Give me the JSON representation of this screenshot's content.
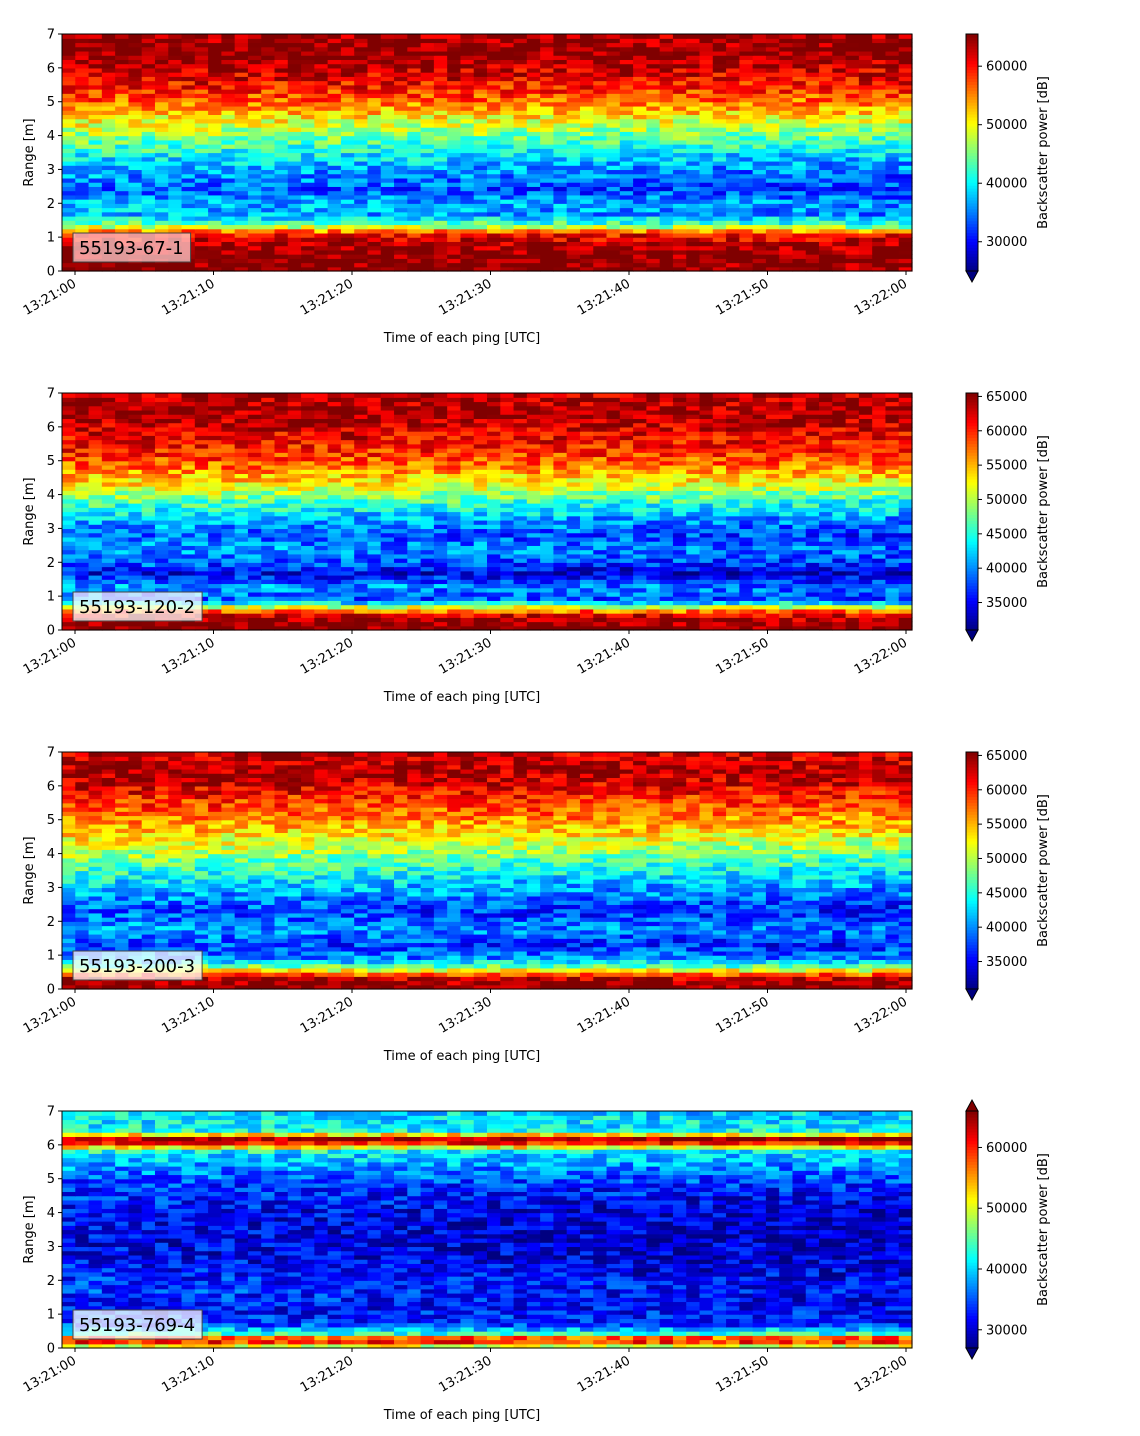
{
  "chart_data": [
    {
      "type": "heatmap",
      "label_box": "55193-67-1",
      "xlabel": "Time of each ping [UTC]",
      "ylabel": "Range [m]",
      "xticks": [
        "13:21:00",
        "13:21:10",
        "13:21:20",
        "13:21:30",
        "13:21:40",
        "13:21:50",
        "13:22:00"
      ],
      "x_range": [
        "13:21:00",
        "13:22:00"
      ],
      "ylim": [
        0,
        7
      ],
      "yticks": [
        "0",
        "1",
        "2",
        "3",
        "4",
        "5",
        "6",
        "7"
      ],
      "colorbar": {
        "label": "Backscatter power [dB]",
        "range": [
          25000,
          65500
        ],
        "ticks": [
          "30000",
          "40000",
          "50000",
          "60000"
        ],
        "extend": "min"
      },
      "profile": [
        {
          "range": 0.1,
          "value": 65500
        },
        {
          "range": 0.4,
          "value": 65500
        },
        {
          "range": 0.8,
          "value": 64000
        },
        {
          "range": 1.1,
          "value": 60000
        },
        {
          "range": 1.35,
          "value": 45000
        },
        {
          "range": 1.7,
          "value": 36000
        },
        {
          "range": 2.0,
          "value": 37000
        },
        {
          "range": 2.4,
          "value": 33000
        },
        {
          "range": 3.0,
          "value": 36000
        },
        {
          "range": 3.5,
          "value": 40000
        },
        {
          "range": 4.0,
          "value": 45000
        },
        {
          "range": 4.5,
          "value": 50000
        },
        {
          "range": 5.0,
          "value": 56000
        },
        {
          "range": 5.5,
          "value": 60000
        },
        {
          "range": 6.0,
          "value": 63000
        },
        {
          "range": 6.5,
          "value": 65500
        },
        {
          "range": 7.0,
          "value": 64000
        }
      ]
    },
    {
      "type": "heatmap",
      "label_box": "55193-120-2",
      "xlabel": "Time of each ping [UTC]",
      "ylabel": "Range [m]",
      "xticks": [
        "13:21:00",
        "13:21:10",
        "13:21:20",
        "13:21:30",
        "13:21:40",
        "13:21:50",
        "13:22:00"
      ],
      "x_range": [
        "13:21:00",
        "13:22:00"
      ],
      "ylim": [
        0,
        7
      ],
      "yticks": [
        "0",
        "1",
        "2",
        "3",
        "4",
        "5",
        "6",
        "7"
      ],
      "colorbar": {
        "label": "Backscatter power [dB]",
        "range": [
          31000,
          65500
        ],
        "ticks": [
          "35000",
          "40000",
          "45000",
          "50000",
          "55000",
          "60000",
          "65000"
        ],
        "extend": "min"
      },
      "profile": [
        {
          "range": 0.1,
          "value": 65500
        },
        {
          "range": 0.4,
          "value": 64000
        },
        {
          "range": 0.6,
          "value": 56000
        },
        {
          "range": 0.9,
          "value": 38000
        },
        {
          "range": 1.3,
          "value": 40000
        },
        {
          "range": 1.7,
          "value": 34000
        },
        {
          "range": 2.0,
          "value": 38000
        },
        {
          "range": 2.4,
          "value": 40000
        },
        {
          "range": 2.8,
          "value": 38000
        },
        {
          "range": 3.3,
          "value": 41000
        },
        {
          "range": 3.8,
          "value": 46000
        },
        {
          "range": 4.3,
          "value": 52000
        },
        {
          "range": 4.8,
          "value": 57000
        },
        {
          "range": 5.3,
          "value": 60000
        },
        {
          "range": 5.8,
          "value": 62000
        },
        {
          "range": 6.3,
          "value": 64500
        },
        {
          "range": 7.0,
          "value": 63500
        }
      ]
    },
    {
      "type": "heatmap",
      "label_box": "55193-200-3",
      "xlabel": "Time of each ping [UTC]",
      "ylabel": "Range [m]",
      "xticks": [
        "13:21:00",
        "13:21:10",
        "13:21:20",
        "13:21:30",
        "13:21:40",
        "13:21:50",
        "13:22:00"
      ],
      "x_range": [
        "13:21:00",
        "13:22:00"
      ],
      "ylim": [
        0,
        7
      ],
      "yticks": [
        "0",
        "1",
        "2",
        "3",
        "4",
        "5",
        "6",
        "7"
      ],
      "colorbar": {
        "label": "Backscatter power [dB]",
        "range": [
          31000,
          65500
        ],
        "ticks": [
          "35000",
          "40000",
          "45000",
          "50000",
          "55000",
          "60000",
          "65000"
        ],
        "extend": "min"
      },
      "profile": [
        {
          "range": 0.1,
          "value": 65500
        },
        {
          "range": 0.35,
          "value": 63000
        },
        {
          "range": 0.6,
          "value": 50000
        },
        {
          "range": 0.9,
          "value": 40000
        },
        {
          "range": 1.3,
          "value": 37000
        },
        {
          "range": 1.8,
          "value": 40000
        },
        {
          "range": 2.3,
          "value": 37000
        },
        {
          "range": 2.8,
          "value": 40000
        },
        {
          "range": 3.3,
          "value": 43000
        },
        {
          "range": 3.8,
          "value": 47000
        },
        {
          "range": 4.3,
          "value": 51000
        },
        {
          "range": 4.8,
          "value": 55000
        },
        {
          "range": 5.3,
          "value": 58000
        },
        {
          "range": 5.8,
          "value": 61000
        },
        {
          "range": 6.3,
          "value": 64000
        },
        {
          "range": 7.0,
          "value": 63000
        }
      ]
    },
    {
      "type": "heatmap",
      "label_box": "55193-769-4",
      "xlabel": "Time of each ping [UTC]",
      "ylabel": "Range [m]",
      "xticks": [
        "13:21:00",
        "13:21:10",
        "13:21:20",
        "13:21:30",
        "13:21:40",
        "13:21:50",
        "13:22:00"
      ],
      "x_range": [
        "13:21:00",
        "13:22:00"
      ],
      "ylim": [
        0,
        7
      ],
      "yticks": [
        "0",
        "1",
        "2",
        "3",
        "4",
        "5",
        "6",
        "7"
      ],
      "colorbar": {
        "label": "Backscatter power [dB]",
        "range": [
          27000,
          66000
        ],
        "ticks": [
          "30000",
          "40000",
          "50000",
          "60000"
        ],
        "extend": "both"
      },
      "profile": [
        {
          "range": 0.1,
          "value": 50000
        },
        {
          "range": 0.25,
          "value": 66000
        },
        {
          "range": 0.4,
          "value": 45000
        },
        {
          "range": 0.7,
          "value": 34000
        },
        {
          "range": 1.2,
          "value": 32000
        },
        {
          "range": 1.8,
          "value": 33000
        },
        {
          "range": 2.5,
          "value": 31000
        },
        {
          "range": 3.2,
          "value": 30000
        },
        {
          "range": 4.0,
          "value": 31000
        },
        {
          "range": 4.7,
          "value": 33000
        },
        {
          "range": 5.3,
          "value": 37000
        },
        {
          "range": 5.8,
          "value": 41000
        },
        {
          "range": 6.05,
          "value": 60000
        },
        {
          "range": 6.2,
          "value": 65000
        },
        {
          "range": 6.4,
          "value": 42000
        },
        {
          "range": 7.0,
          "value": 40000
        }
      ]
    }
  ]
}
